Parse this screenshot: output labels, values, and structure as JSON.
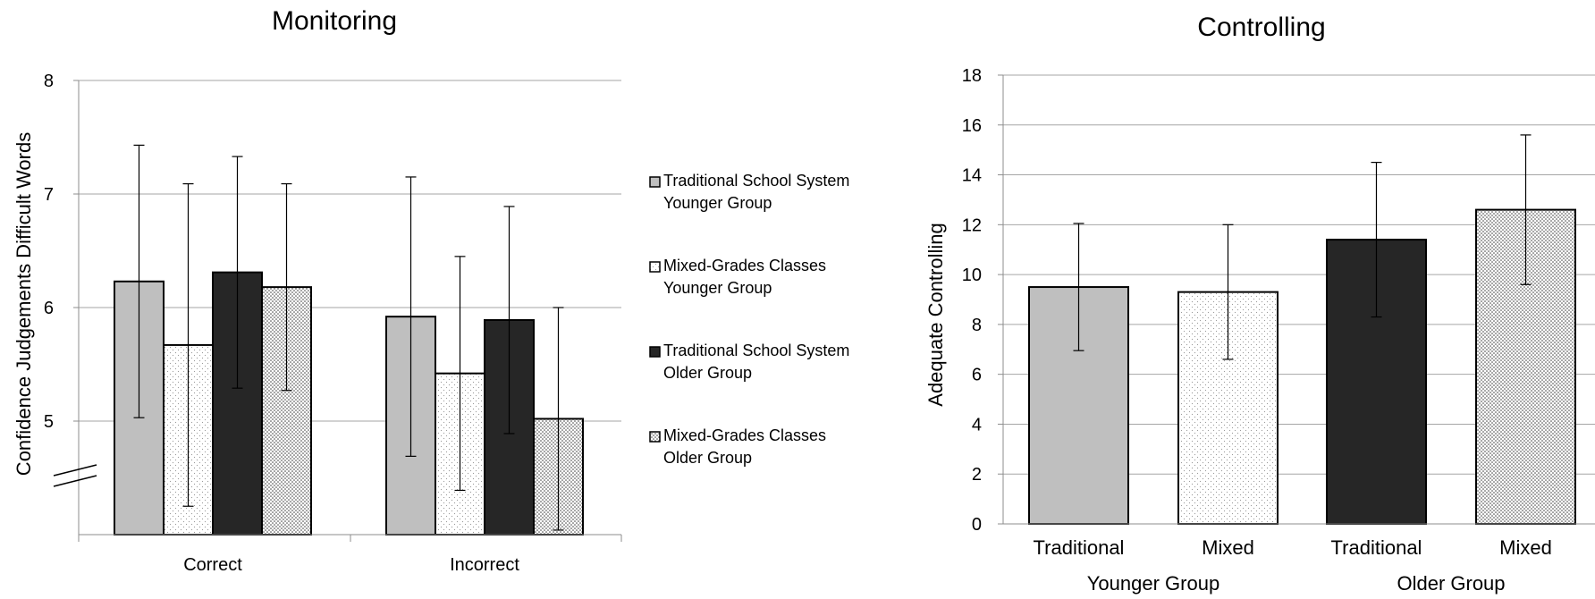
{
  "colors": {
    "trad_younger": "#bfbfbf",
    "mixed_younger": "#ffffff",
    "trad_older": "#262626",
    "mixed_older": "#ffffff"
  },
  "chart_data": [
    {
      "type": "bar",
      "title": "Monitoring",
      "ylabel": "Confidence Judgements Difficult Words",
      "ylim": [
        4,
        8
      ],
      "yticks": [
        "5",
        "6",
        "7",
        "8"
      ],
      "axis_break": true,
      "grid": true,
      "legend_position": "right",
      "categories": [
        "Correct",
        "Incorrect"
      ],
      "series": [
        {
          "name_line1": "Traditional School System",
          "name_line2": "Younger Group",
          "pattern": "solid-gray",
          "values": [
            6.23,
            5.92
          ],
          "errors": [
            1.2,
            1.23
          ]
        },
        {
          "name_line1": "Mixed-Grades Classes",
          "name_line2": "Younger  Group",
          "pattern": "light-dots",
          "values": [
            5.67,
            5.42
          ],
          "errors": [
            1.42,
            1.03
          ]
        },
        {
          "name_line1": "Traditional School System",
          "name_line2": "Older Group",
          "pattern": "solid-dark",
          "values": [
            6.31,
            5.89
          ],
          "errors": [
            1.02,
            1.0
          ]
        },
        {
          "name_line1": "Mixed-Grades Classes",
          "name_line2": "Older Group",
          "pattern": "dense-dots",
          "values": [
            6.18,
            5.02
          ],
          "errors": [
            0.91,
            0.98
          ]
        }
      ]
    },
    {
      "type": "bar",
      "title": "Controlling",
      "ylabel": "Adequate Controlling",
      "ylim": [
        0,
        18
      ],
      "yticks": [
        "0",
        "2",
        "4",
        "6",
        "8",
        "10",
        "12",
        "14",
        "16",
        "18"
      ],
      "grid": true,
      "categories": [
        "Traditional",
        "Mixed",
        "Traditional",
        "Mixed"
      ],
      "groups": [
        "Younger Group",
        "Older Group"
      ],
      "values": [
        9.5,
        9.3,
        11.4,
        12.6
      ],
      "errors": [
        2.55,
        2.7,
        3.1,
        3.0
      ],
      "patterns": [
        "solid-gray",
        "light-dots",
        "solid-dark",
        "dense-dots"
      ]
    }
  ]
}
